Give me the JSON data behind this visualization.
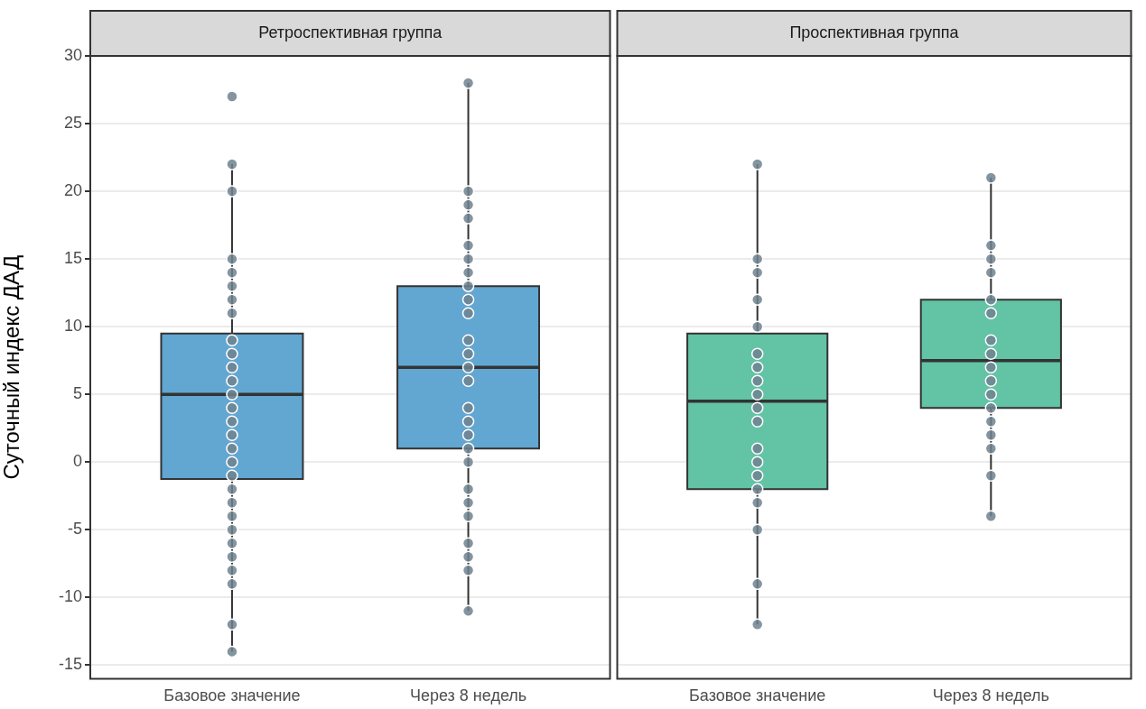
{
  "chart_data": [
    {
      "type": "box",
      "title": "Ретроспективная группа",
      "ylabel": "Суточный индекс ДАД",
      "categories": [
        "Базовое значение",
        "Через 8 недель"
      ],
      "ylim": [
        -16,
        30
      ],
      "yticks": [
        -15,
        -10,
        -5,
        0,
        5,
        10,
        15,
        20,
        25,
        30
      ],
      "grid": "y",
      "legend": false,
      "series": [
        {
          "type": "box",
          "color": "#62a6d2",
          "boxes": [
            {
              "low": -14,
              "q1": -1.25,
              "median": 5,
              "q3": 9.5,
              "high": 22
            },
            {
              "low": -11,
              "q1": 1,
              "median": 7,
              "q3": 13,
              "high": 28
            }
          ]
        },
        {
          "type": "scatter",
          "color": "#6e828f",
          "marker": "circle",
          "x": [
            "Базовое значение",
            "Базовое значение",
            "Базовое значение",
            "Базовое значение",
            "Базовое значение",
            "Базовое значение",
            "Базовое значение",
            "Базовое значение",
            "Базовое значение",
            "Базовое значение",
            "Базовое значение",
            "Базовое значение",
            "Базовое значение",
            "Базовое значение",
            "Базовое значение",
            "Базовое значение",
            "Базовое значение",
            "Базовое значение",
            "Базовое значение",
            "Базовое значение",
            "Базовое значение",
            "Базовое значение",
            "Базовое значение",
            "Базовое значение",
            "Базовое значение",
            "Базовое значение",
            "Базовое значение",
            "Базовое значение",
            "Базовое значение",
            "Через 8 недель",
            "Через 8 недель",
            "Через 8 недель",
            "Через 8 недель",
            "Через 8 недель",
            "Через 8 недель",
            "Через 8 недель",
            "Через 8 недель",
            "Через 8 недель",
            "Через 8 недель",
            "Через 8 недель",
            "Через 8 недель",
            "Через 8 недель",
            "Через 8 недель",
            "Через 8 недель",
            "Через 8 недель",
            "Через 8 недель",
            "Через 8 недель",
            "Через 8 недель",
            "Через 8 недель",
            "Через 8 недель",
            "Через 8 недель",
            "Через 8 недель",
            "Через 8 недель",
            "Через 8 недель",
            "Через 8 недель"
          ],
          "values": [
            27,
            22,
            20,
            15,
            14,
            13,
            12,
            11,
            9,
            8,
            7,
            6,
            5,
            4,
            3,
            2,
            1,
            0,
            -1,
            -2,
            -3,
            -4,
            -5,
            -6,
            -7,
            -8,
            -9,
            -12,
            -14,
            28,
            20,
            19,
            18,
            16,
            15,
            14,
            13,
            12,
            11,
            9,
            8,
            7,
            6,
            4,
            3,
            2,
            1,
            0,
            -2,
            -3,
            -4,
            -6,
            -7,
            -8,
            -11
          ]
        }
      ]
    },
    {
      "type": "box",
      "title": "Проспективная группа",
      "categories": [
        "Базовое значение",
        "Через 8 недель"
      ],
      "ylim": [
        -16,
        30
      ],
      "yticks": [
        -15,
        -10,
        -5,
        0,
        5,
        10,
        15,
        20,
        25,
        30
      ],
      "grid": "y",
      "legend": false,
      "tick_labels": "x",
      "series": [
        {
          "type": "box",
          "color": "#63c3a5",
          "boxes": [
            {
              "low": -12,
              "q1": -2,
              "median": 4.5,
              "q3": 9.5,
              "high": 22
            },
            {
              "low": -4,
              "q1": 4,
              "median": 7.5,
              "q3": 12,
              "high": 21
            }
          ]
        },
        {
          "type": "scatter",
          "color": "#6e828f",
          "marker": "circle",
          "x": [
            "Базовое значение",
            "Базовое значение",
            "Базовое значение",
            "Базовое значение",
            "Базовое значение",
            "Базовое значение",
            "Базовое значение",
            "Базовое значение",
            "Базовое значение",
            "Базовое значение",
            "Базовое значение",
            "Базовое значение",
            "Базовое значение",
            "Базовое значение",
            "Базовое значение",
            "Базовое значение",
            "Базовое значение",
            "Базовое значение",
            "Базовое значение",
            "Через 8 недель",
            "Через 8 недель",
            "Через 8 недель",
            "Через 8 недель",
            "Через 8 недель",
            "Через 8 недель",
            "Через 8 недель",
            "Через 8 недель",
            "Через 8 недель",
            "Через 8 недель",
            "Через 8 недель",
            "Через 8 недель",
            "Через 8 недель",
            "Через 8 недель",
            "Через 8 недель",
            "Через 8 недель",
            "Через 8 недель"
          ],
          "values": [
            22,
            15,
            14,
            12,
            10,
            8,
            7,
            6,
            5,
            4,
            3,
            1,
            0,
            -1,
            -2,
            -3,
            -5,
            -9,
            -12,
            21,
            16,
            15,
            14,
            12,
            11,
            9,
            8,
            7,
            6,
            5,
            4,
            3,
            2,
            1,
            -1,
            -4
          ]
        }
      ]
    }
  ]
}
